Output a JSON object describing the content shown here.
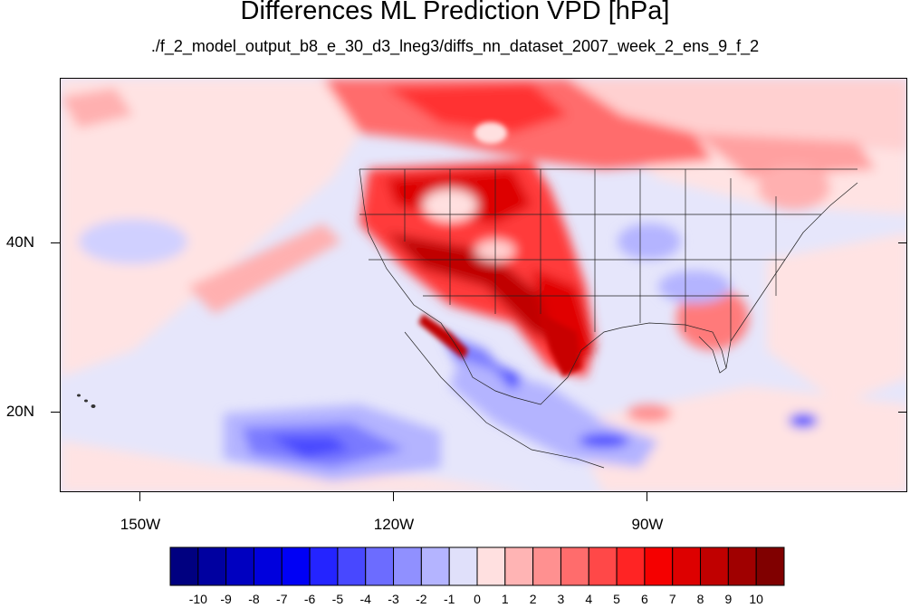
{
  "title": "Differences ML Prediction VPD [hPa]",
  "subtitle": "./f_2_model_output_b8_e_30_d3_lneg3/diffs_nn_dataset_2007_week_2_ens_9_f_2",
  "axes": {
    "lat_labels": [
      {
        "text": "40N",
        "value": 40
      },
      {
        "text": "20N",
        "value": 20
      }
    ],
    "lon_labels": [
      {
        "text": "150W",
        "value": -150
      },
      {
        "text": "120W",
        "value": -120
      },
      {
        "text": "90W",
        "value": -90
      }
    ],
    "lon_range": [
      -159.5,
      -60
    ],
    "lat_range": [
      10,
      59
    ]
  },
  "colorbar": {
    "labels": [
      "-10",
      "-9",
      "-8",
      "-7",
      "-6",
      "-5",
      "-4",
      "-3",
      "-2",
      "-1",
      "0",
      "1",
      "2",
      "3",
      "4",
      "5",
      "6",
      "7",
      "8",
      "9",
      "10"
    ],
    "colors": [
      "#000080",
      "#0000a0",
      "#0000c0",
      "#0000dd",
      "#0000f5",
      "#2424ff",
      "#4848ff",
      "#6c6cff",
      "#9090ff",
      "#b4b4ff",
      "#e0e0fa",
      "#ffe0e0",
      "#ffb4b4",
      "#ff9090",
      "#ff6c6c",
      "#ff4848",
      "#ff2424",
      "#f50000",
      "#dd0000",
      "#c00000",
      "#a00000",
      "#800000"
    ]
  }
}
